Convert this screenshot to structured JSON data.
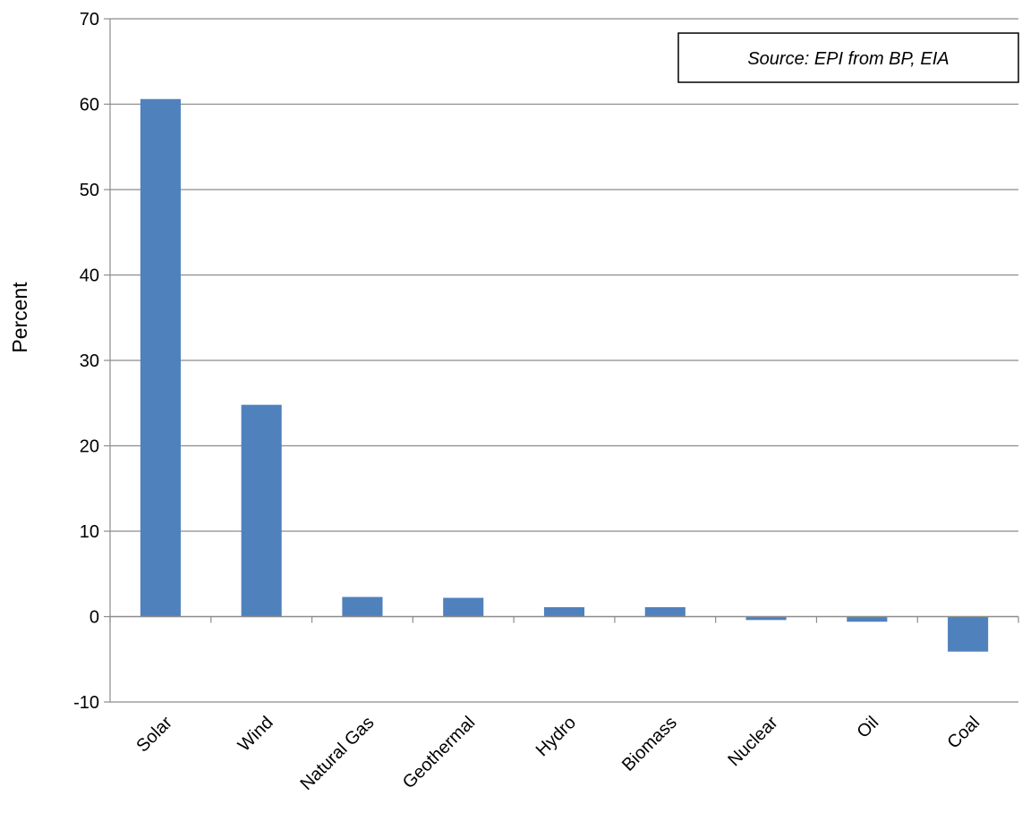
{
  "chart_data": {
    "type": "bar",
    "categories": [
      "Solar",
      "Wind",
      "Natural Gas",
      "Geothermal",
      "Hydro",
      "Biomass",
      "Nuclear",
      "Oil",
      "Coal"
    ],
    "values": [
      60.6,
      24.8,
      2.3,
      2.2,
      1.1,
      1.1,
      -0.4,
      -0.6,
      -4.1
    ],
    "ylabel": "Percent",
    "xlabel": "",
    "ylim": [
      -10,
      70
    ],
    "yticks": [
      -10,
      0,
      10,
      20,
      30,
      40,
      50,
      60,
      70
    ],
    "grid": true,
    "bar_color": "#4f81bd",
    "annotation": "Source: EPI from BP, EIA"
  }
}
